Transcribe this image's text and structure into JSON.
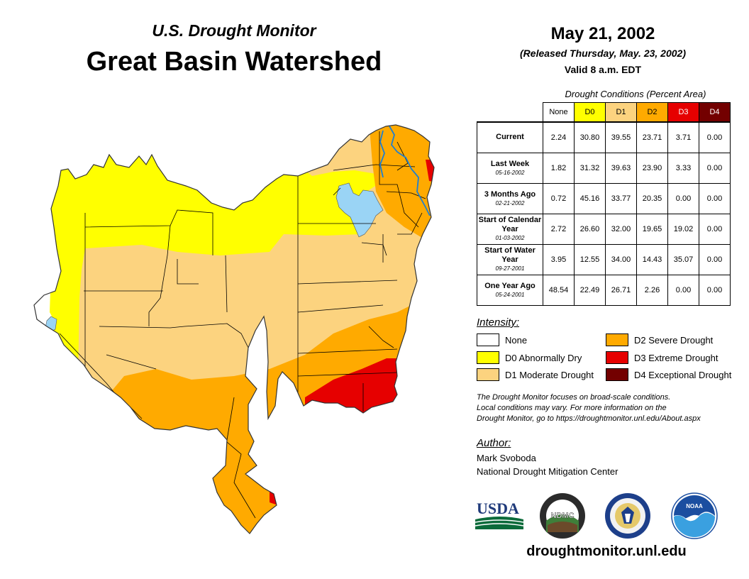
{
  "header": {
    "subtitle": "U.S. Drought Monitor",
    "title": "Great Basin Watershed"
  },
  "info": {
    "date": "May 21, 2002",
    "released": "(Released Thursday, May. 23, 2002)",
    "valid": "Valid 8 a.m. EDT"
  },
  "table": {
    "caption": "Drought Conditions (Percent Area)",
    "columns": [
      {
        "label": "None",
        "color": "#ffffff",
        "text_color": "#000000"
      },
      {
        "label": "D0",
        "color": "#ffff00",
        "text_color": "#000000"
      },
      {
        "label": "D1",
        "color": "#fcd37f",
        "text_color": "#000000"
      },
      {
        "label": "D2",
        "color": "#ffaa00",
        "text_color": "#000000"
      },
      {
        "label": "D3",
        "color": "#e60000",
        "text_color": "#ffffff"
      },
      {
        "label": "D4",
        "color": "#730000",
        "text_color": "#ffffff"
      }
    ],
    "rows": [
      {
        "label": "Current",
        "sub": "",
        "values": [
          "2.24",
          "30.80",
          "39.55",
          "23.71",
          "3.71",
          "0.00"
        ]
      },
      {
        "label": "Last Week",
        "sub": "05-16-2002",
        "values": [
          "1.82",
          "31.32",
          "39.63",
          "23.90",
          "3.33",
          "0.00"
        ]
      },
      {
        "label": "3 Months Ago",
        "sub": "02-21-2002",
        "values": [
          "0.72",
          "45.16",
          "33.77",
          "20.35",
          "0.00",
          "0.00"
        ]
      },
      {
        "label": "Start of Calendar Year",
        "sub": "01-03-2002",
        "values": [
          "2.72",
          "26.60",
          "32.00",
          "19.65",
          "19.02",
          "0.00"
        ]
      },
      {
        "label": "Start of Water Year",
        "sub": "09-27-2001",
        "values": [
          "3.95",
          "12.55",
          "34.00",
          "14.43",
          "35.07",
          "0.00"
        ]
      },
      {
        "label": "One Year Ago",
        "sub": "05-24-2001",
        "values": [
          "48.54",
          "22.49",
          "26.71",
          "2.26",
          "0.00",
          "0.00"
        ]
      }
    ]
  },
  "legend": {
    "title": "Intensity:",
    "items": [
      {
        "label": "None",
        "color": "#ffffff"
      },
      {
        "label": "D0 Abnormally Dry",
        "color": "#ffff00"
      },
      {
        "label": "D1 Moderate Drought",
        "color": "#fcd37f"
      },
      {
        "label": "D2 Severe Drought",
        "color": "#ffaa00"
      },
      {
        "label": "D3 Extreme Drought",
        "color": "#e60000"
      },
      {
        "label": "D4 Exceptional Drought",
        "color": "#730000"
      }
    ]
  },
  "note": {
    "line1": "The Drought Monitor focuses on broad-scale conditions.",
    "line2": "Local conditions may vary. For more information on the",
    "line3": "Drought Monitor, go to https://droughtmonitor.unl.edu/About.aspx"
  },
  "author": {
    "title": "Author:",
    "name": "Mark Svoboda",
    "org": "National Drought Mitigation Center"
  },
  "logos": {
    "usda": "USDA",
    "ndmc": "NDMC",
    "noaa": "NOAA"
  },
  "website": "droughtmonitor.unl.edu",
  "colors": {
    "water": "#9ad4f5",
    "river": "#1e7fd0"
  }
}
